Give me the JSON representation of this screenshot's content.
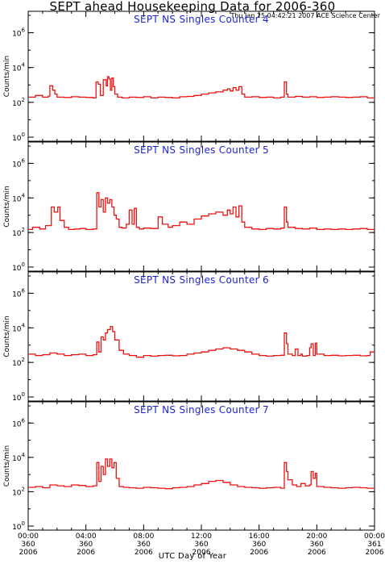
{
  "header": {
    "title": "SEPT ahead Housekeeping Data for 2006-360",
    "timestamp": "Thu Jan 25 04:42:21 2007 ACE Science Center"
  },
  "xaxis_label": "UTC Day of Year",
  "colors": {
    "series": "#ee1111",
    "panel_title": "#1e24d6",
    "frame": "#000000"
  },
  "chart_data": [
    {
      "type": "line",
      "title": "SEPT NS Singles Counter 4",
      "ylabel": "Counts/min",
      "yscale": "log",
      "ylim": [
        1,
        10000000
      ],
      "xlim": [
        0,
        24
      ],
      "grid": false,
      "y_ticks": [
        {
          "value": 1,
          "base": "10",
          "exp": "0"
        },
        {
          "value": 100,
          "base": "10",
          "exp": "2"
        },
        {
          "value": 10000,
          "base": "10",
          "exp": "4"
        },
        {
          "value": 1000000,
          "base": "10",
          "exp": "6"
        }
      ],
      "x": [
        0,
        0.5,
        1,
        1.4,
        1.5,
        1.7,
        1.85,
        2,
        2.5,
        3,
        3.5,
        4,
        4.5,
        4.7,
        4.85,
        5,
        5.2,
        5.4,
        5.5,
        5.6,
        5.7,
        5.8,
        5.9,
        6,
        6.2,
        6.5,
        7,
        7.5,
        8,
        8.5,
        9,
        9.5,
        10,
        10.5,
        11,
        11.5,
        12,
        12.5,
        13,
        13.5,
        13.8,
        14,
        14.2,
        14.4,
        14.6,
        14.8,
        15,
        15.5,
        16,
        16.5,
        17,
        17.5,
        17.75,
        17.9,
        18,
        18.5,
        19,
        19.5,
        20,
        20.5,
        21,
        21.5,
        22,
        22.5,
        23,
        23.5
      ],
      "y": [
        200,
        250,
        200,
        230,
        900,
        500,
        300,
        200,
        190,
        210,
        200,
        190,
        180,
        1500,
        1100,
        250,
        2000,
        900,
        3000,
        2200,
        500,
        2500,
        800,
        300,
        200,
        180,
        200,
        190,
        210,
        180,
        200,
        190,
        180,
        210,
        220,
        250,
        300,
        350,
        400,
        500,
        600,
        450,
        700,
        500,
        800,
        300,
        200,
        210,
        190,
        200,
        180,
        200,
        1500,
        300,
        200,
        220,
        200,
        210,
        190,
        200,
        210,
        200,
        190,
        200,
        210,
        180
      ]
    },
    {
      "type": "line",
      "title": "SEPT NS Singles Counter 5",
      "ylabel": "Counts/min",
      "yscale": "log",
      "ylim": [
        1,
        10000000
      ],
      "xlim": [
        0,
        24
      ],
      "grid": false,
      "y_ticks": [
        {
          "value": 1,
          "base": "10",
          "exp": "0"
        },
        {
          "value": 100,
          "base": "10",
          "exp": "2"
        },
        {
          "value": 10000,
          "base": "10",
          "exp": "4"
        },
        {
          "value": 1000000,
          "base": "10",
          "exp": "6"
        }
      ],
      "x": [
        0,
        0.3,
        0.8,
        1.2,
        1.6,
        1.8,
        2.05,
        2.2,
        2.5,
        2.8,
        3.2,
        3.6,
        4,
        4.5,
        4.75,
        4.9,
        5.05,
        5.2,
        5.35,
        5.5,
        5.65,
        5.8,
        5.95,
        6.1,
        6.3,
        6.5,
        6.8,
        7,
        7.2,
        7.35,
        7.5,
        7.7,
        8,
        8.5,
        9,
        9.3,
        9.7,
        10,
        10.5,
        11,
        11.5,
        12,
        12.5,
        13,
        13.5,
        13.8,
        14,
        14.2,
        14.4,
        14.6,
        14.8,
        15,
        15.5,
        16,
        16.5,
        17,
        17.5,
        17.75,
        17.9,
        18,
        18.5,
        19,
        19.5,
        20,
        20.5,
        21,
        21.5,
        22,
        22.5,
        23,
        23.5
      ],
      "y": [
        150,
        200,
        160,
        250,
        3000,
        1500,
        3000,
        500,
        200,
        150,
        160,
        170,
        150,
        160,
        20000,
        3000,
        8000,
        1500,
        10000,
        5000,
        8000,
        3000,
        1000,
        600,
        200,
        180,
        300,
        2000,
        300,
        2500,
        200,
        160,
        180,
        170,
        800,
        300,
        200,
        250,
        400,
        300,
        600,
        900,
        1200,
        1500,
        1000,
        2000,
        1200,
        3000,
        800,
        3500,
        400,
        200,
        160,
        150,
        170,
        160,
        180,
        3000,
        400,
        200,
        170,
        160,
        180,
        150,
        160,
        150,
        160,
        150,
        160,
        170,
        150
      ]
    },
    {
      "type": "line",
      "title": "SEPT NS Singles Counter 6",
      "ylabel": "Counts/min",
      "yscale": "log",
      "ylim": [
        1,
        10000000
      ],
      "xlim": [
        0,
        24
      ],
      "grid": false,
      "y_ticks": [
        {
          "value": 1,
          "base": "10",
          "exp": "0"
        },
        {
          "value": 100,
          "base": "10",
          "exp": "2"
        },
        {
          "value": 10000,
          "base": "10",
          "exp": "4"
        },
        {
          "value": 1000000,
          "base": "10",
          "exp": "6"
        }
      ],
      "x": [
        0,
        0.5,
        1,
        1.5,
        2,
        2.5,
        3,
        3.5,
        4,
        4.5,
        4.75,
        4.9,
        5.05,
        5.2,
        5.35,
        5.5,
        5.7,
        5.85,
        6,
        6.3,
        6.6,
        7,
        7.5,
        8,
        8.5,
        9,
        9.5,
        10,
        10.5,
        11,
        11.5,
        12,
        12.5,
        13,
        13.5,
        14,
        14.5,
        15,
        15.5,
        16,
        16.5,
        17,
        17.5,
        17.75,
        17.9,
        18,
        18.3,
        18.5,
        18.7,
        18.9,
        19,
        19.3,
        19.5,
        19.6,
        19.75,
        19.9,
        20,
        20.5,
        21,
        21.5,
        22,
        22.5,
        23,
        23.5,
        23.7
      ],
      "y": [
        300,
        250,
        280,
        350,
        300,
        250,
        280,
        300,
        250,
        280,
        1500,
        400,
        3000,
        2000,
        5000,
        8000,
        12000,
        6000,
        2000,
        500,
        300,
        250,
        200,
        250,
        230,
        250,
        260,
        240,
        250,
        300,
        350,
        400,
        500,
        600,
        700,
        600,
        500,
        400,
        300,
        250,
        230,
        250,
        260,
        5000,
        1200,
        300,
        250,
        600,
        250,
        300,
        230,
        250,
        700,
        1200,
        250,
        1300,
        300,
        250,
        260,
        240,
        250,
        260,
        240,
        250,
        400
      ]
    },
    {
      "type": "line",
      "title": "SEPT NS Singles Counter 7",
      "ylabel": "Counts/min",
      "yscale": "log",
      "ylim": [
        1,
        10000000
      ],
      "xlim": [
        0,
        24
      ],
      "grid": false,
      "y_ticks": [
        {
          "value": 1,
          "base": "10",
          "exp": "0"
        },
        {
          "value": 100,
          "base": "10",
          "exp": "2"
        },
        {
          "value": 10000,
          "base": "10",
          "exp": "4"
        },
        {
          "value": 1000000,
          "base": "10",
          "exp": "6"
        }
      ],
      "x": [
        0,
        0.5,
        1,
        1.5,
        2,
        2.5,
        3,
        3.5,
        4,
        4.5,
        4.75,
        4.9,
        5.05,
        5.2,
        5.35,
        5.5,
        5.65,
        5.8,
        5.95,
        6.1,
        6.3,
        6.6,
        7,
        7.5,
        8,
        8.5,
        9,
        9.5,
        10,
        10.5,
        11,
        11.5,
        12,
        12.5,
        13,
        13.5,
        14,
        14.5,
        15,
        15.5,
        16,
        16.5,
        17,
        17.5,
        17.75,
        17.9,
        18,
        18.3,
        18.6,
        18.9,
        19.2,
        19.5,
        19.6,
        19.75,
        19.9,
        20,
        20.5,
        21,
        21.5,
        22,
        22.5,
        23,
        23.5
      ],
      "y": [
        180,
        200,
        170,
        250,
        220,
        200,
        250,
        230,
        200,
        220,
        5000,
        400,
        3000,
        1000,
        8000,
        3000,
        8000,
        2500,
        5000,
        600,
        200,
        180,
        170,
        160,
        180,
        170,
        160,
        150,
        170,
        180,
        200,
        250,
        300,
        400,
        450,
        350,
        250,
        200,
        180,
        170,
        160,
        170,
        180,
        160,
        5000,
        1500,
        500,
        250,
        200,
        300,
        220,
        250,
        1500,
        600,
        1200,
        200,
        180,
        170,
        160,
        170,
        180,
        170,
        160
      ]
    }
  ],
  "x_ticks": [
    {
      "value": 0,
      "time": "00:00",
      "doy": "360",
      "year": "2006"
    },
    {
      "value": 4,
      "time": "04:00",
      "doy": "360",
      "year": "2006"
    },
    {
      "value": 8,
      "time": "08:00",
      "doy": "360",
      "year": "2006"
    },
    {
      "value": 12,
      "time": "12:00",
      "doy": "360",
      "year": "2006"
    },
    {
      "value": 16,
      "time": "16:00",
      "doy": "360",
      "year": "2006"
    },
    {
      "value": 20,
      "time": "20:00",
      "doy": "360",
      "year": "2006"
    },
    {
      "value": 24,
      "time": "00:00",
      "doy": "361",
      "year": "2006"
    }
  ]
}
